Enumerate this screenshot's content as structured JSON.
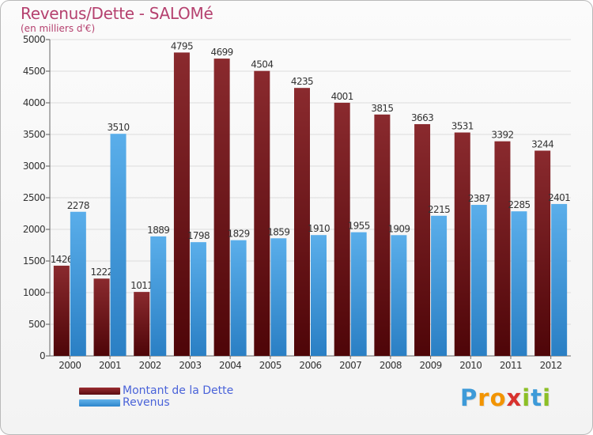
{
  "title": "Revenus/Dette - SALOMé",
  "subtitle": "(en milliers d'€)",
  "logo": {
    "letters": [
      "P",
      "r",
      "o",
      "x",
      "i",
      "t",
      "i"
    ],
    "colors": [
      "#3d9ad8",
      "#f29400",
      "#f29400",
      "#d8322e",
      "#8cbf26",
      "#3d9ad8",
      "#8cbf26"
    ]
  },
  "colors": {
    "dette": "#7a1e22",
    "revenus": "#3a95da",
    "title": "#b5416f",
    "legend_text": "#4a63d9"
  },
  "chart_data": {
    "type": "bar",
    "title": "Revenus/Dette - SALOMé",
    "subtitle": "(en milliers d'€)",
    "categories": [
      "2000",
      "2001",
      "2002",
      "2003",
      "2004",
      "2005",
      "2006",
      "2007",
      "2008",
      "2009",
      "2010",
      "2011",
      "2012"
    ],
    "series": [
      {
        "name": "Montant de la Dette",
        "values": [
          1426,
          1222,
          1011,
          4795,
          4699,
          4504,
          4235,
          4001,
          3815,
          3663,
          3531,
          3392,
          3244
        ]
      },
      {
        "name": "Revenus",
        "values": [
          2278,
          3510,
          1889,
          1798,
          1829,
          1859,
          1910,
          1955,
          1909,
          2215,
          2387,
          2285,
          2401
        ]
      }
    ],
    "data_labels": [
      [
        "1426",
        "1222",
        "1011",
        "4795",
        "4699",
        "4504",
        "4235",
        "4001",
        "3815",
        "3663",
        "3531",
        "3392",
        "3244"
      ],
      [
        "2278",
        "3510",
        "1889",
        "1798",
        "1829",
        "1859",
        "1910",
        "1955",
        "1909",
        "2215",
        "2387",
        "2285",
        "2401"
      ]
    ],
    "yticks": [
      "0",
      "500",
      "1000",
      "1500",
      "2000",
      "2500",
      "3000",
      "3500",
      "4000",
      "4500",
      "5000"
    ],
    "ylim": [
      0,
      5000
    ],
    "grid": true,
    "legend_position": "bottom-left"
  }
}
